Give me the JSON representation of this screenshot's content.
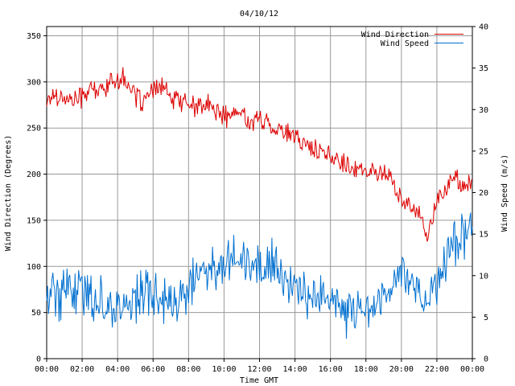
{
  "chart_data": {
    "type": "line",
    "title": "04/10/12",
    "xlabel": "Time GMT",
    "ylabel_left": "Wind Direction (Degrees)",
    "ylabel_right": "Wind Speed (m/s)",
    "xlim": [
      "00:00",
      "24:00"
    ],
    "ylim_left": [
      0,
      360
    ],
    "ylim_right": [
      0,
      40
    ],
    "x_ticks": [
      "00:00",
      "02:00",
      "04:00",
      "06:00",
      "08:00",
      "10:00",
      "12:00",
      "14:00",
      "16:00",
      "18:00",
      "20:00",
      "22:00",
      "00:00"
    ],
    "y_ticks_left": [
      0,
      50,
      100,
      150,
      200,
      250,
      300,
      350
    ],
    "y_ticks_right": [
      0,
      5,
      10,
      15,
      20,
      25,
      30,
      35,
      40
    ],
    "grid": true,
    "legend_position": "top-right",
    "series": [
      {
        "name": "Wind Direction",
        "axis": "left",
        "color": "#dd0000",
        "x_hours": [
          0,
          0.5,
          1,
          1.5,
          2,
          2.5,
          3,
          3.5,
          4,
          4.5,
          5,
          5.5,
          6,
          6.5,
          7,
          7.5,
          8,
          8.5,
          9,
          9.5,
          10,
          10.5,
          11,
          11.5,
          12,
          12.5,
          13,
          13.5,
          14,
          14.5,
          15,
          15.5,
          16,
          16.5,
          17,
          17.5,
          18,
          18.5,
          19,
          19.5,
          20,
          20.5,
          21,
          21.5,
          22,
          22.5,
          23,
          23.5,
          24
        ],
        "values": [
          280,
          287,
          282,
          280,
          285,
          292,
          290,
          298,
          304,
          302,
          283,
          280,
          288,
          297,
          280,
          282,
          276,
          272,
          275,
          270,
          262,
          265,
          266,
          255,
          260,
          255,
          250,
          245,
          238,
          235,
          228,
          222,
          218,
          215,
          210,
          208,
          200,
          205,
          200,
          195,
          168,
          165,
          160,
          135,
          170,
          185,
          195,
          190,
          185
        ]
      },
      {
        "name": "Wind Speed",
        "axis": "right",
        "color": "#0070d0",
        "x_hours": [
          0,
          0.5,
          1,
          1.5,
          2,
          2.5,
          3,
          3.5,
          4,
          4.5,
          5,
          5.5,
          6,
          6.5,
          7,
          7.5,
          8,
          8.5,
          9,
          9.5,
          10,
          10.5,
          11,
          11.5,
          12,
          12.5,
          13,
          13.5,
          14,
          14.5,
          15,
          15.5,
          16,
          16.5,
          17,
          17.5,
          18,
          18.5,
          19,
          19.5,
          20,
          20.5,
          21,
          21.5,
          22,
          22.5,
          23,
          23.5,
          24
        ],
        "values": [
          8.5,
          8,
          7.5,
          8.5,
          8,
          7.5,
          7,
          6.5,
          6,
          6,
          7.5,
          8,
          8,
          7.5,
          6.5,
          6.5,
          8,
          10,
          11,
          10.5,
          12,
          13,
          12.5,
          11,
          11,
          12,
          11,
          9,
          8,
          8,
          8,
          7.5,
          7,
          6,
          5.5,
          6,
          6,
          6.5,
          7,
          9,
          11,
          9.5,
          8,
          7,
          9,
          12,
          14,
          15,
          16
        ]
      }
    ]
  }
}
